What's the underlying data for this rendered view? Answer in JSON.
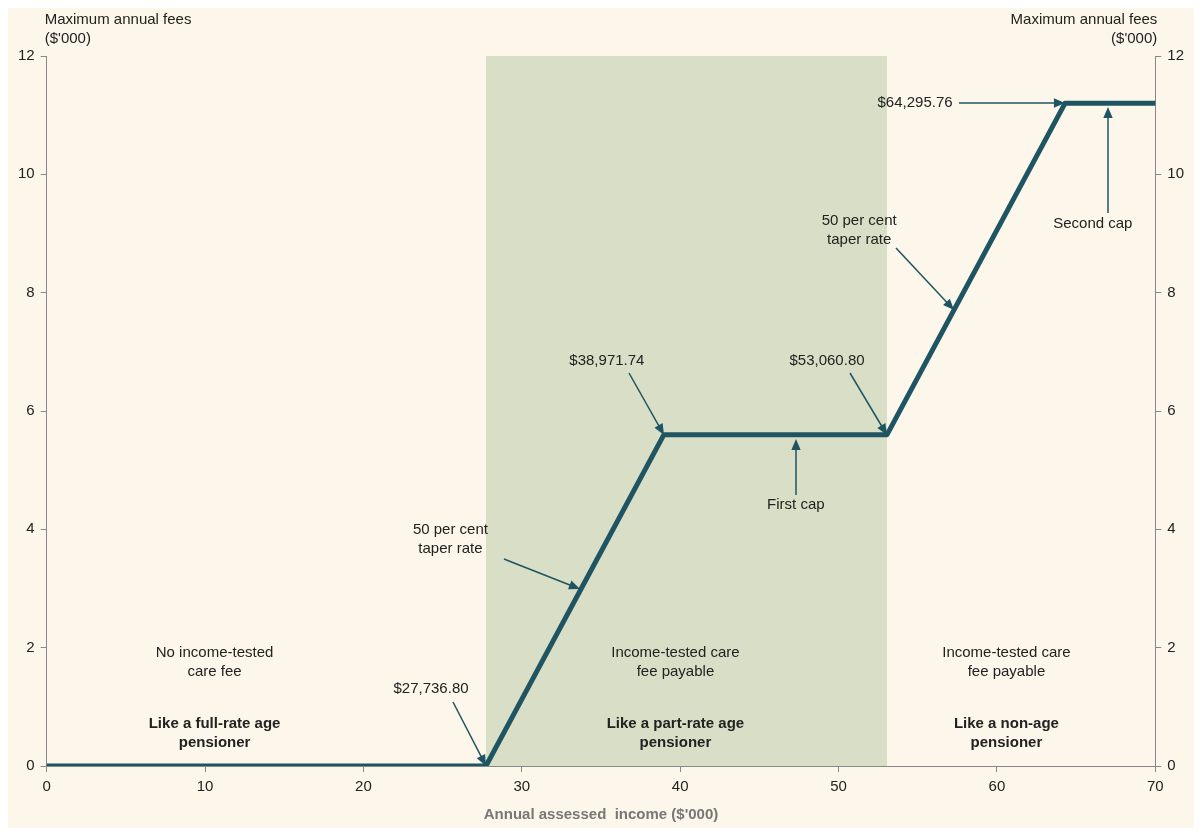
{
  "chart_data": {
    "type": "line",
    "xlabel": "Annual assessed  income ($'000)",
    "ylabel": "Maximum annual fees ($'000)",
    "y2label": "Maximum annual fees ($'000)",
    "x": [
      0,
      27.7368,
      38.97174,
      53.0608,
      64.29576,
      70
    ],
    "series": [
      {
        "color": "#1f5563",
        "values": [
          0,
          0,
          5.6,
          5.6,
          11.2,
          11.2
        ]
      }
    ],
    "xlim": [
      0,
      70
    ],
    "xticks": [
      0,
      10,
      20,
      30,
      40,
      50,
      60,
      70
    ],
    "ylim": [
      0,
      12
    ],
    "yticks": [
      0,
      2,
      4,
      6,
      8,
      10,
      12
    ],
    "y2lim": [
      0,
      12
    ],
    "y2ticks": [
      0,
      2,
      4,
      6,
      8,
      10,
      12
    ],
    "bands": [
      {
        "axis": "x",
        "from": 27.7368,
        "to": 53.0608,
        "color": "#d9dfc6"
      }
    ],
    "grid": false,
    "legend": false,
    "marker": "none",
    "line_style": "solid",
    "annotations": [
      "$27,736.80",
      "$38,971.74",
      "$53,060.80",
      "$64,295.76",
      "50 per cent taper rate",
      "50 per cent taper rate",
      "First cap",
      "Second cap",
      "No income-tested care fee",
      "Like a full-rate age pensioner",
      "Income-tested care fee payable",
      "Like a part-rate age pensioner",
      "Income-tested care fee payable",
      "Like a non-age pensioner"
    ]
  }
}
